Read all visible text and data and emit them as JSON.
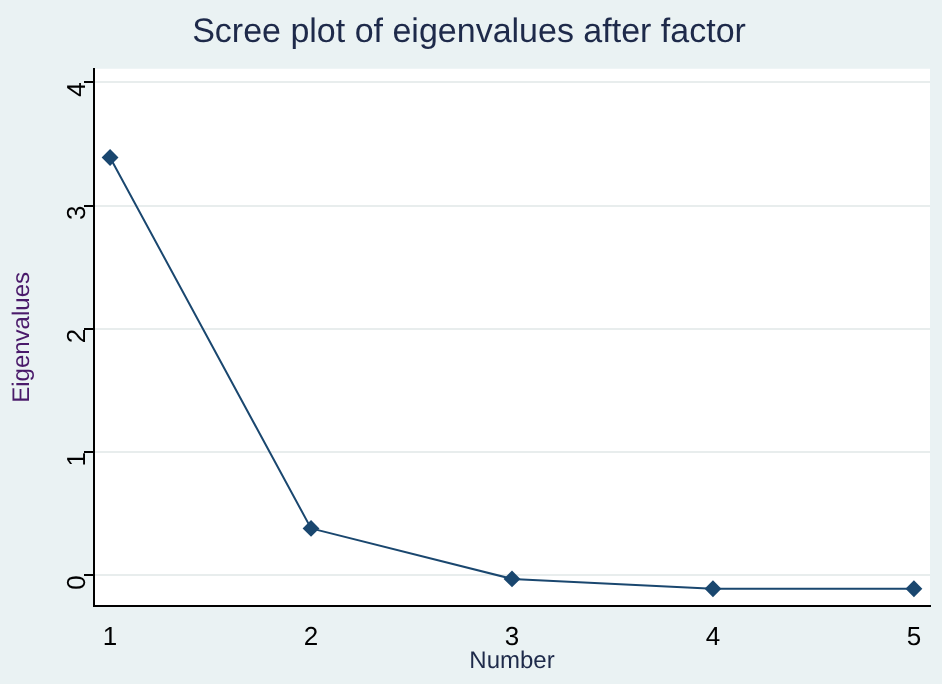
{
  "chart_data": {
    "type": "line",
    "title": "Scree plot of eigenvalues after factor",
    "xlabel": "Number",
    "ylabel": "Eigenvalues",
    "x": [
      1,
      2,
      3,
      4,
      5
    ],
    "series": [
      {
        "color": "#1a476f",
        "values": [
          3.39,
          0.38,
          -0.03,
          -0.11,
          -0.11
        ]
      }
    ],
    "xlim": [
      0.92,
      5.08
    ],
    "xticks": [
      1,
      2,
      3,
      4,
      5
    ],
    "ylim": [
      -0.25,
      4.11
    ],
    "yticks": [
      0,
      1,
      2,
      3,
      4
    ],
    "grid": "y",
    "legend": false,
    "marker": "diamond",
    "line_style": "solid"
  }
}
